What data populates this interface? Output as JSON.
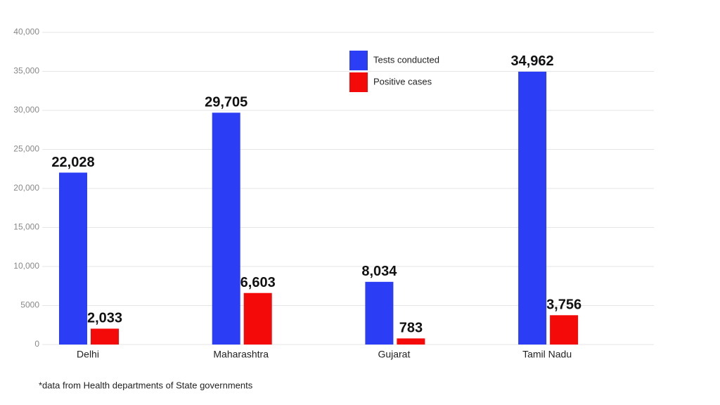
{
  "chart_data": {
    "type": "bar",
    "categories": [
      "Delhi",
      "Maharashtra",
      "Gujarat",
      "Tamil Nadu"
    ],
    "series": [
      {
        "name": "Tests conducted",
        "color": "#2b3df5",
        "values": [
          22028,
          29705,
          8034,
          34962
        ],
        "value_labels": [
          "22,028",
          "29,705",
          "8,034",
          "34,962"
        ]
      },
      {
        "name": "Positive cases",
        "color": "#f50a0a",
        "values": [
          2033,
          6603,
          783,
          3756
        ],
        "value_labels": [
          "2,033",
          "6,603",
          "783",
          "3,756"
        ]
      }
    ],
    "ylim": [
      0,
      40000
    ],
    "yticks": [
      0,
      5000,
      {
        "value": 10000,
        "label": "10,000"
      },
      {
        "value": 15000,
        "label": "15,000"
      },
      {
        "value": 20000,
        "label": "20,000"
      },
      {
        "value": 25000,
        "label": "25,000"
      },
      {
        "value": 30000,
        "label": "30,000"
      },
      {
        "value": 35000,
        "label": "35,000"
      },
      {
        "value": 40000,
        "label": "40,000"
      }
    ],
    "grid": true,
    "legend": "top-center",
    "footnote": "*data from Health departments of State governments"
  }
}
